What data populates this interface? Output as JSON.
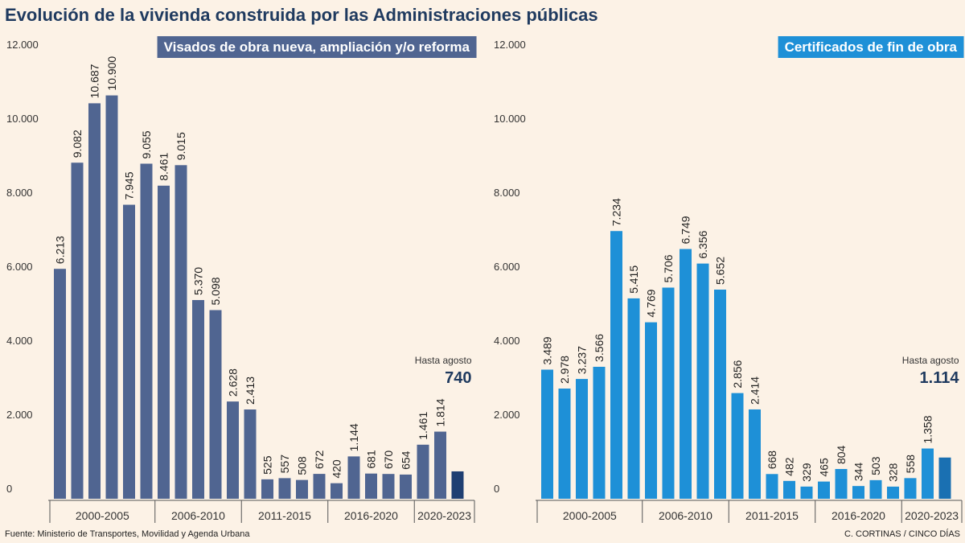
{
  "title": "Evolución de la vivienda construida por las Administraciones públicas",
  "source": "Fuente: Ministerio de Transportes, Movilidad y Agenda Urbana",
  "credit": "C. CORTINAS / CINCO DÍAS",
  "chart_data": [
    {
      "type": "bar",
      "title": "Visados de obra nueva, ampliación y/o reforma",
      "categories": [
        null,
        null,
        null,
        null,
        null,
        null,
        null,
        null,
        null,
        null,
        null,
        null,
        null,
        null,
        null,
        null,
        null,
        null,
        null,
        null,
        null,
        null,
        null,
        null
      ],
      "x_groups": [
        {
          "label": "2000-2005",
          "size": 6
        },
        {
          "label": "2006-2010",
          "size": 5
        },
        {
          "label": "2011-2015",
          "size": 5
        },
        {
          "label": "2016-2020",
          "size": 5
        },
        {
          "label": "2020-2023",
          "size": 3
        }
      ],
      "values": [
        6213,
        9082,
        10687,
        10900,
        7945,
        9055,
        8461,
        9015,
        5370,
        5098,
        2628,
        2413,
        525,
        557,
        508,
        672,
        420,
        1144,
        681,
        670,
        654,
        1461,
        1814,
        740
      ],
      "value_labels": [
        "6.213",
        "9.082",
        "10.687",
        "10.900",
        "7.945",
        "9.055",
        "8.461",
        "9.015",
        "5.370",
        "5.098",
        "2.628",
        "2.413",
        "525",
        "557",
        "508",
        "672",
        "420",
        "1.144",
        "681",
        "670",
        "654",
        "1.461",
        "1.814",
        "740"
      ],
      "color": "#506591",
      "highlight_color": "#1f3f72",
      "annotation": "Hasta agosto",
      "ylim": [
        0,
        12000
      ],
      "yticks": [
        0,
        {
          "value": 2000,
          "label": "2.000"
        },
        {
          "value": 4000,
          "label": "4.000"
        },
        {
          "value": 6000,
          "label": "6.000"
        },
        {
          "value": 8000,
          "label": "8.000"
        },
        {
          "value": 10000,
          "label": "10.000"
        },
        {
          "value": 12000,
          "label": "12.000"
        }
      ],
      "grid": false
    },
    {
      "type": "bar",
      "title": "Certificados de fin de obra",
      "categories": [
        null,
        null,
        null,
        null,
        null,
        null,
        null,
        null,
        null,
        null,
        null,
        null,
        null,
        null,
        null,
        null,
        null,
        null,
        null,
        null,
        null,
        null,
        null,
        null
      ],
      "x_groups": [
        {
          "label": "2000-2005",
          "size": 6
        },
        {
          "label": "2006-2010",
          "size": 5
        },
        {
          "label": "2011-2015",
          "size": 5
        },
        {
          "label": "2016-2020",
          "size": 5
        },
        {
          "label": "2020-2023",
          "size": 3
        }
      ],
      "values": [
        3489,
        2978,
        3237,
        3566,
        7234,
        5415,
        4769,
        5706,
        6749,
        6356,
        5652,
        2856,
        2414,
        668,
        482,
        329,
        465,
        804,
        344,
        503,
        328,
        558,
        1358,
        1114
      ],
      "value_labels": [
        "3.489",
        "2.978",
        "3.237",
        "3.566",
        "7.234",
        "5.415",
        "4.769",
        "5.706",
        "6.749",
        "6.356",
        "5.652",
        "2.856",
        "2.414",
        "668",
        "482",
        "329",
        "465",
        "804",
        "344",
        "503",
        "328",
        "558",
        "1.358",
        "1.114"
      ],
      "color": "#1e90d7",
      "highlight_color": "#1a70b2",
      "annotation": "Hasta agosto",
      "ylim": [
        0,
        12000
      ],
      "yticks": [
        0,
        {
          "value": 2000,
          "label": "2.000"
        },
        {
          "value": 4000,
          "label": "4.000"
        },
        {
          "value": 6000,
          "label": "6.000"
        },
        {
          "value": 8000,
          "label": "8.000"
        },
        {
          "value": 10000,
          "label": "10.000"
        },
        {
          "value": 12000,
          "label": "12.000"
        }
      ],
      "grid": false
    }
  ]
}
